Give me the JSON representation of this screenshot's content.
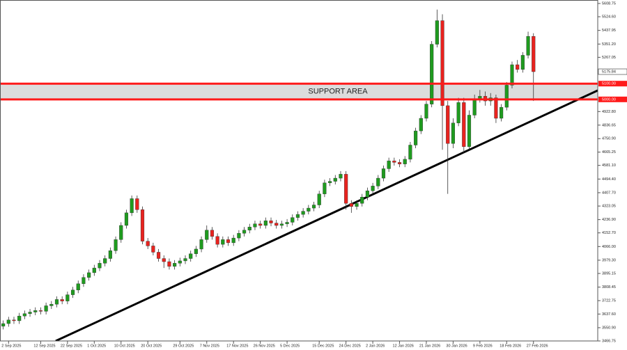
{
  "chart_data": {
    "type": "candlestick",
    "open": [
      3560,
      3577,
      3600,
      3595,
      3625,
      3640,
      3650,
      3660,
      3655,
      3690,
      3700,
      3730,
      3720,
      3760,
      3790,
      3830,
      3870,
      3900,
      3930,
      3960,
      3990,
      4040,
      4110,
      4200,
      4280,
      4370,
      4300,
      4100,
      4070,
      4030,
      3990,
      3970,
      3940,
      3960,
      3975,
      3990,
      4020,
      4050,
      4110,
      4170,
      4130,
      4080,
      4110,
      4090,
      4120,
      4150,
      4170,
      4190,
      4210,
      4200,
      4230,
      4215,
      4200,
      4210,
      4220,
      4250,
      4270,
      4290,
      4310,
      4330,
      4400,
      4470,
      4480,
      4500,
      4525,
      4340,
      4320,
      4340,
      4380,
      4420,
      4450,
      4500,
      4560,
      4610,
      4600,
      4590,
      4620,
      4710,
      4800,
      4880,
      4970,
      5350,
      5500,
      4960,
      4720,
      4850,
      4980,
      4700,
      4900,
      5000,
      5020,
      4990,
      5010,
      4880,
      4950,
      5090,
      5220,
      5190,
      5280,
      5400
    ],
    "high": [
      3597,
      3620,
      3620,
      3645,
      3660,
      3670,
      3680,
      3680,
      3710,
      3720,
      3750,
      3750,
      3780,
      3810,
      3850,
      3890,
      3920,
      3950,
      3980,
      4010,
      4060,
      4130,
      4220,
      4300,
      4390,
      4390,
      4320,
      4120,
      4090,
      4050,
      4010,
      3990,
      3980,
      3995,
      4010,
      4040,
      4070,
      4130,
      4200,
      4190,
      4150,
      4130,
      4130,
      4140,
      4170,
      4190,
      4210,
      4230,
      4230,
      4250,
      4250,
      4235,
      4230,
      4240,
      4270,
      4290,
      4310,
      4330,
      4350,
      4420,
      4490,
      4500,
      4520,
      4545,
      4545,
      4360,
      4360,
      4400,
      4440,
      4470,
      4520,
      4580,
      4630,
      4630,
      4620,
      4640,
      4730,
      4820,
      4900,
      4990,
      5370,
      5570,
      5540,
      4990,
      4880,
      5010,
      5010,
      4930,
      5030,
      5060,
      5050,
      5040,
      5030,
      4970,
      5110,
      5240,
      5250,
      5300,
      5430,
      5420
    ],
    "low": [
      3540,
      3557,
      3575,
      3575,
      3605,
      3620,
      3630,
      3635,
      3635,
      3670,
      3680,
      3700,
      3700,
      3740,
      3770,
      3810,
      3850,
      3880,
      3910,
      3940,
      3970,
      4020,
      4090,
      4180,
      4260,
      4280,
      4080,
      4050,
      4010,
      3970,
      3930,
      3920,
      3920,
      3940,
      3955,
      3970,
      4000,
      4030,
      4090,
      4110,
      4060,
      4060,
      4070,
      4070,
      4100,
      4130,
      4150,
      4170,
      4180,
      4180,
      4195,
      4180,
      4180,
      4190,
      4200,
      4230,
      4250,
      4270,
      4290,
      4310,
      4380,
      4450,
      4460,
      4480,
      4300,
      4280,
      4300,
      4320,
      4360,
      4400,
      4430,
      4480,
      4540,
      4580,
      4570,
      4570,
      4600,
      4690,
      4780,
      4860,
      4950,
      5330,
      4680,
      4400,
      4690,
      4830,
      4660,
      4680,
      4880,
      4980,
      4960,
      4960,
      4850,
      4860,
      4930,
      5070,
      5170,
      5170,
      5260,
      4990
    ],
    "close": [
      3577,
      3600,
      3595,
      3625,
      3640,
      3650,
      3660,
      3655,
      3690,
      3700,
      3730,
      3720,
      3760,
      3790,
      3830,
      3870,
      3900,
      3930,
      3960,
      3990,
      4040,
      4110,
      4200,
      4280,
      4370,
      4300,
      4100,
      4070,
      4030,
      3990,
      3970,
      3940,
      3960,
      3975,
      3990,
      4020,
      4050,
      4110,
      4170,
      4130,
      4080,
      4110,
      4090,
      4120,
      4150,
      4170,
      4190,
      4210,
      4200,
      4230,
      4215,
      4200,
      4210,
      4220,
      4250,
      4270,
      4290,
      4310,
      4330,
      4400,
      4470,
      4480,
      4500,
      4525,
      4340,
      4320,
      4340,
      4380,
      4420,
      4450,
      4500,
      4560,
      4610,
      4600,
      4590,
      4620,
      4710,
      4800,
      4880,
      4970,
      5350,
      5500,
      4960,
      4720,
      4850,
      4980,
      4700,
      4900,
      5000,
      5020,
      4990,
      5010,
      4880,
      4950,
      5090,
      5220,
      5190,
      5280,
      5400,
      5175.84
    ],
    "up_color": "#1f9b1f",
    "down_color": "#e8231f",
    "xlim": [
      -0.6,
      111
    ],
    "xticks": [
      {
        "value": 1,
        "label": "2 Sep 2025"
      },
      {
        "value": 7,
        "label": "12 Sep 2025"
      },
      {
        "value": 12,
        "label": "22 Sep 2025"
      },
      {
        "value": 17,
        "label": "1 Oct 2025"
      },
      {
        "value": 22,
        "label": "10 Oct 2025"
      },
      {
        "value": 27,
        "label": "20 Oct 2025"
      },
      {
        "value": 33,
        "label": "29 Oct 2025"
      },
      {
        "value": 38,
        "label": "7 Nov 2025"
      },
      {
        "value": 43,
        "label": "17 Nov 2025"
      },
      {
        "value": 48,
        "label": "26 Nov 2025"
      },
      {
        "value": 53,
        "label": "5 Dec 2025"
      },
      {
        "value": 59,
        "label": "15 Dec 2025"
      },
      {
        "value": 64,
        "label": "24 Dec 2025"
      },
      {
        "value": 69,
        "label": "2 Jan 2026"
      },
      {
        "value": 74,
        "label": "12 Jan 2026"
      },
      {
        "value": 79,
        "label": "21 Jan 2026"
      },
      {
        "value": 84,
        "label": "30 Jan 2026"
      },
      {
        "value": 89,
        "label": "9 Feb 2026"
      },
      {
        "value": 94,
        "label": "18 Feb 2026"
      },
      {
        "value": 99,
        "label": "27 Feb 2026"
      }
    ],
    "ylim": [
      3466.75,
      5630.8
    ],
    "yticks": [
      5608.75,
      {
        "value": 5524.6,
        "label": "5524.60"
      },
      5437.95,
      {
        "value": 5351.2,
        "label": "5351.20"
      },
      5267.05,
      {
        "value": 4922.8,
        "label": "4922.80"
      },
      4836.65,
      {
        "value": 4750.9,
        "label": "4750.90"
      },
      4665.25,
      {
        "value": 4581.1,
        "label": "4581.10"
      },
      {
        "value": 4494.4,
        "label": "4494.40"
      },
      {
        "value": 4407.7,
        "label": "4407.70"
      },
      4323.05,
      {
        "value": 4236.9,
        "label": "4236.90"
      },
      {
        "value": 4152.7,
        "label": "4152.70"
      },
      {
        "value": 4066,
        "label": "4066.00"
      },
      {
        "value": 3979.3,
        "label": "3979.30"
      },
      3895.15,
      3808.45,
      3722.75,
      {
        "value": 3637.6,
        "label": "3637.60"
      },
      {
        "value": 3550.9,
        "label": "3550.90"
      },
      3466.75
    ],
    "trendline": [
      [
        9.8,
        3466.75
      ],
      [
        111,
        5057
      ]
    ],
    "trendline_color": "#000000",
    "support_zone": {
      "label": "SUPPORT AREA",
      "color": "#ff1a1a",
      "lines": [
        {
          "value": 5100,
          "label": "5100.00"
        },
        {
          "value": 5000,
          "label": "5000.00"
        }
      ]
    },
    "last_price": 5175.84
  }
}
